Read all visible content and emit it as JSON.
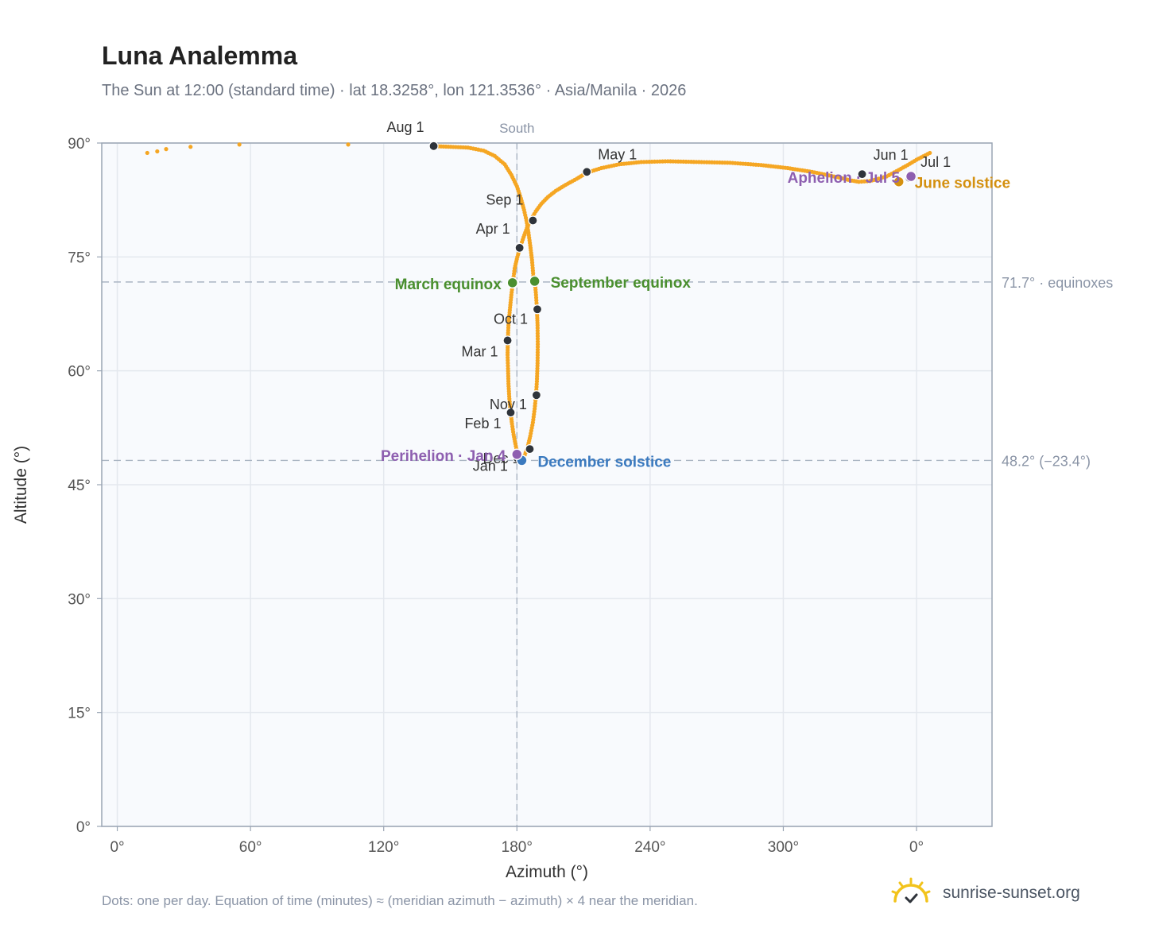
{
  "title": "Luna Analemma",
  "subtitle": "The Sun at 12:00 (standard time) · lat 18.3258°, lon 121.3536° · Asia/Manila · 2026",
  "footnote": "Dots: one per day. Equation of time (minutes) ≈ (meridian azimuth − azimuth) × 4 near the meridian.",
  "brand": "sunrise-sunset.org",
  "chart_data": {
    "type": "scatter",
    "xlabel": "Azimuth (°)",
    "ylabel": "Altitude (°)",
    "x_ticks": [
      "0°",
      "60°",
      "120°",
      "180°",
      "240°",
      "300°",
      "0°"
    ],
    "y_ticks": [
      "0°",
      "15°",
      "30°",
      "45°",
      "60°",
      "75°",
      "90°"
    ],
    "xlim_unwrapped": [
      -7,
      394
    ],
    "ylim": [
      0,
      90
    ],
    "grid": true,
    "meridian_label": "South",
    "reference_lines": [
      {
        "altitude": 71.7,
        "label": "71.7° · equinoxes"
      },
      {
        "altitude": 48.2,
        "label": "48.2° (−23.4°)"
      }
    ],
    "colors": {
      "path": "#f5a623",
      "month_marker": "#2f343b",
      "equinox": "#4a8f2f",
      "solstice_december": "#3b7abf",
      "solstice_june": "#d4900f",
      "apsis": "#8e5fb0",
      "grid": "#e4e8ee",
      "reference": "#a9b4c2",
      "plot_background": "#f8fafd"
    },
    "path": [
      [
        180.5,
        48.4
      ],
      [
        180.0,
        49.4
      ],
      [
        179.3,
        50.4
      ],
      [
        178.5,
        51.6
      ],
      [
        177.8,
        53.0
      ],
      [
        177.2,
        54.5
      ],
      [
        176.6,
        56.3
      ],
      [
        176.2,
        58.3
      ],
      [
        176.0,
        60.3
      ],
      [
        175.8,
        62.1
      ],
      [
        175.9,
        64.0
      ],
      [
        176.2,
        66.0
      ],
      [
        176.8,
        68.0
      ],
      [
        177.5,
        70.0
      ],
      [
        178.2,
        71.7
      ],
      [
        179.0,
        73.5
      ],
      [
        180.2,
        75.0
      ],
      [
        181.5,
        76.3
      ],
      [
        183.0,
        77.6
      ],
      [
        184.5,
        78.8
      ],
      [
        186.5,
        80.0
      ],
      [
        188.5,
        81.0
      ],
      [
        191.0,
        82.0
      ],
      [
        194.0,
        82.9
      ],
      [
        197.5,
        83.7
      ],
      [
        202.0,
        84.5
      ],
      [
        207.0,
        85.3
      ],
      [
        211.5,
        86.1
      ],
      [
        218.0,
        86.7
      ],
      [
        226.0,
        87.2
      ],
      [
        236.0,
        87.5
      ],
      [
        248.0,
        87.6
      ],
      [
        262.0,
        87.5
      ],
      [
        276.0,
        87.4
      ],
      [
        290.0,
        87.1
      ],
      [
        302.0,
        86.7
      ],
      [
        313.0,
        86.2
      ],
      [
        319.5,
        85.8
      ],
      [
        326.0,
        85.4
      ],
      [
        330.0,
        85.1
      ],
      [
        334.0,
        84.9
      ],
      [
        339.0,
        85.0
      ],
      [
        343.0,
        85.3
      ],
      [
        346.5,
        85.6
      ],
      [
        351.0,
        86.3
      ],
      [
        356.0,
        87.1
      ],
      [
        360.0,
        87.8
      ],
      [
        364.0,
        88.4
      ],
      [
        366.0,
        88.7
      ]
    ],
    "path_west": [
      [
        13.5,
        88.7
      ],
      [
        18.0,
        88.9
      ],
      [
        22.0,
        89.2
      ],
      [
        33.0,
        89.5
      ],
      [
        55.0,
        89.8
      ],
      [
        104.0,
        89.8
      ],
      [
        142.5,
        89.6
      ],
      [
        158.0,
        89.4
      ],
      [
        165.0,
        89.0
      ],
      [
        170.0,
        88.3
      ],
      [
        174.5,
        87.2
      ],
      [
        177.5,
        85.8
      ],
      [
        180.0,
        84.3
      ],
      [
        181.8,
        82.7
      ],
      [
        183.2,
        81.2
      ],
      [
        184.3,
        79.8
      ],
      [
        185.2,
        78.2
      ],
      [
        186.0,
        76.5
      ],
      [
        186.8,
        74.6
      ],
      [
        187.4,
        72.5
      ],
      [
        188.1,
        71.7
      ],
      [
        188.6,
        70.0
      ],
      [
        189.0,
        68.2
      ],
      [
        189.3,
        66.0
      ],
      [
        189.4,
        63.5
      ],
      [
        189.3,
        61.0
      ],
      [
        189.0,
        58.6
      ],
      [
        188.6,
        56.8
      ],
      [
        188.0,
        55.0
      ],
      [
        187.2,
        53.2
      ],
      [
        186.0,
        51.4
      ],
      [
        184.8,
        49.9
      ],
      [
        183.5,
        48.9
      ],
      [
        182.0,
        48.3
      ],
      [
        180.5,
        48.4
      ]
    ],
    "month_markers": [
      {
        "label": "Jan 1",
        "az": 180.2,
        "alt": 48.5,
        "label_side": "left",
        "label_dy": 16
      },
      {
        "label": "Feb 1",
        "az": 177.2,
        "alt": 54.5,
        "label_side": "left",
        "label_dy": 20
      },
      {
        "label": "Mar 1",
        "az": 175.8,
        "alt": 64.0,
        "label_side": "left",
        "label_dy": 20
      },
      {
        "label": "Apr 1",
        "az": 181.2,
        "alt": 76.2,
        "label_side": "left",
        "label_dy": -18
      },
      {
        "label": "May 1",
        "az": 211.5,
        "alt": 86.2,
        "label_side": "right",
        "label_dy": -16
      },
      {
        "label": "Jun 1",
        "az": 335.5,
        "alt": 85.9,
        "label_side": "right",
        "label_dy": -18
      },
      {
        "label": "Jul 1",
        "az": 356.8,
        "alt": 85.4,
        "label_side": "right",
        "label_dy": -14
      },
      {
        "label": "Aug 1",
        "az": 142.5,
        "alt": 89.6,
        "label_side": "left",
        "label_dy": -18
      },
      {
        "label": "Sep 1",
        "az": 187.2,
        "alt": 79.8,
        "label_side": "left",
        "label_dy": -20
      },
      {
        "label": "Oct 1",
        "az": 189.2,
        "alt": 68.1,
        "label_side": "left",
        "label_dy": 18
      },
      {
        "label": "Nov 1",
        "az": 188.8,
        "alt": 56.8,
        "label_side": "left",
        "label_dy": 18
      },
      {
        "label": "Dec 1",
        "az": 185.8,
        "alt": 49.7,
        "label_side": "left",
        "label_dy": 18
      }
    ],
    "events": [
      {
        "label": "March equinox",
        "az": 178.0,
        "alt": 71.6,
        "kind": "equinox",
        "label_side": "left"
      },
      {
        "label": "September equinox",
        "az": 188.0,
        "alt": 71.8,
        "kind": "equinox",
        "label_side": "right"
      },
      {
        "label": "December solstice",
        "az": 182.2,
        "alt": 48.2,
        "kind": "solstice_december",
        "label_side": "right"
      },
      {
        "label": "June solstice",
        "az": 352.0,
        "alt": 84.9,
        "kind": "solstice_june",
        "label_side": "right"
      },
      {
        "label": "Perihelion · Jan 4",
        "az": 180.0,
        "alt": 49.0,
        "kind": "apsis",
        "label_side": "left"
      },
      {
        "label": "Aphelion · Jul 5",
        "az": 357.5,
        "alt": 85.6,
        "kind": "apsis",
        "label_side": "left"
      }
    ]
  }
}
